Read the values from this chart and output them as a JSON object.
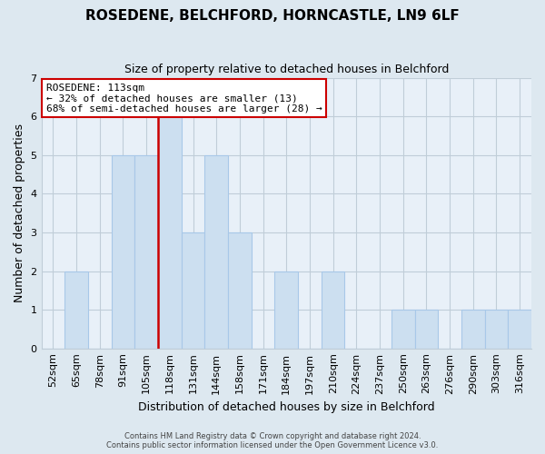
{
  "title": "ROSEDENE, BELCHFORD, HORNCASTLE, LN9 6LF",
  "subtitle": "Size of property relative to detached houses in Belchford",
  "xlabel": "Distribution of detached houses by size in Belchford",
  "ylabel": "Number of detached properties",
  "categories": [
    "52sqm",
    "65sqm",
    "78sqm",
    "91sqm",
    "105sqm",
    "118sqm",
    "131sqm",
    "144sqm",
    "158sqm",
    "171sqm",
    "184sqm",
    "197sqm",
    "210sqm",
    "224sqm",
    "237sqm",
    "250sqm",
    "263sqm",
    "276sqm",
    "290sqm",
    "303sqm",
    "316sqm"
  ],
  "values": [
    0,
    2,
    0,
    5,
    5,
    6,
    3,
    5,
    3,
    0,
    2,
    0,
    2,
    0,
    0,
    1,
    1,
    0,
    1,
    1,
    1
  ],
  "bar_color": "#ccdff0",
  "bar_edge_color": "#a8c8e8",
  "highlight_line_color": "#cc0000",
  "highlight_line_index": 5,
  "ylim": [
    0,
    7
  ],
  "yticks": [
    0,
    1,
    2,
    3,
    4,
    5,
    6,
    7
  ],
  "annotation_line1": "ROSEDENE: 113sqm",
  "annotation_line2": "← 32% of detached houses are smaller (13)",
  "annotation_line3": "68% of semi-detached houses are larger (28) →",
  "annotation_box_color": "#ffffff",
  "annotation_box_edge": "#cc0000",
  "footer_line1": "Contains HM Land Registry data © Crown copyright and database right 2024.",
  "footer_line2": "Contains public sector information licensed under the Open Government Licence v3.0.",
  "background_color": "#dde8f0",
  "plot_background_color": "#e8f0f8",
  "grid_color": "#c0cdd8"
}
